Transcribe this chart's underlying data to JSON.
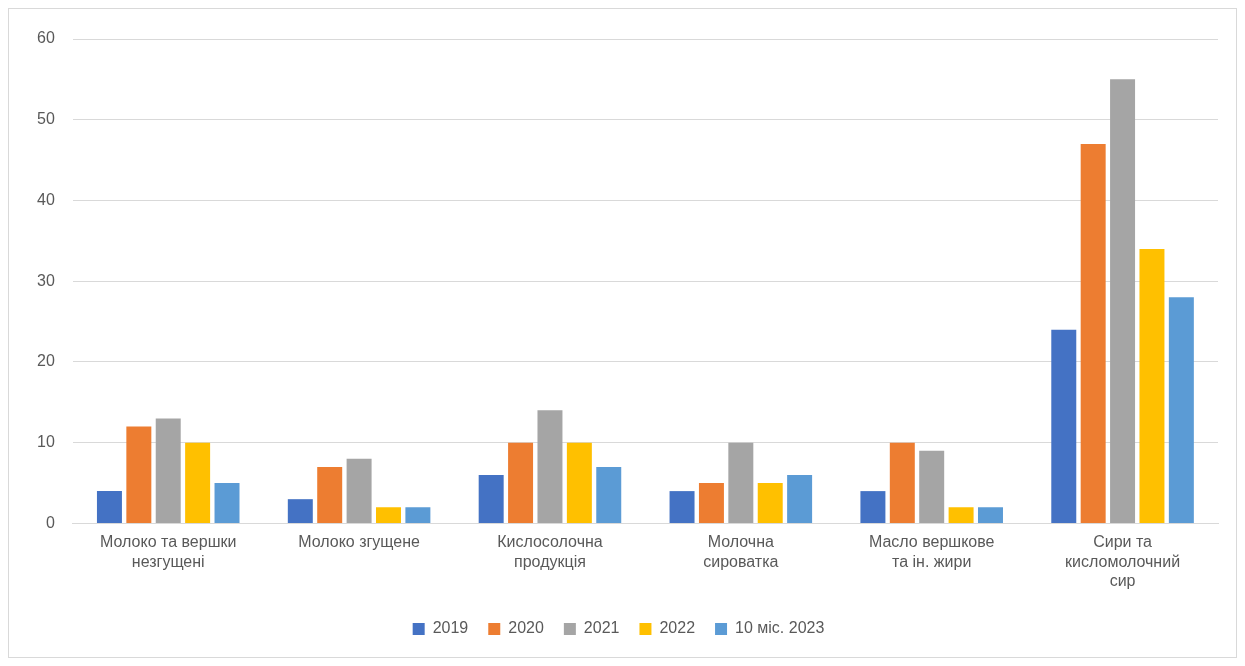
{
  "chart_data": {
    "type": "bar",
    "categories": [
      "Молоко та вершки незгущені",
      "Молоко згущене",
      "Кислосолочна продукція",
      "Молочна сироватка",
      "Масло вершкове та ін. жири",
      "Сири та кисломолочний сир"
    ],
    "series": [
      {
        "name": "2019",
        "color": "#4472c4",
        "values": [
          4,
          3,
          6,
          4,
          4,
          24
        ]
      },
      {
        "name": "2020",
        "color": "#ed7d31",
        "values": [
          12,
          7,
          10,
          5,
          10,
          47
        ]
      },
      {
        "name": "2021",
        "color": "#a5a5a5",
        "values": [
          13,
          8,
          14,
          10,
          9,
          55
        ]
      },
      {
        "name": "2022",
        "color": "#ffc000",
        "values": [
          10,
          2,
          10,
          5,
          2,
          34
        ]
      },
      {
        "name": "10 міс. 2023",
        "color": "#5b9bd5",
        "values": [
          5,
          2,
          7,
          6,
          2,
          28
        ]
      }
    ],
    "ylim": [
      0,
      60
    ],
    "yticks": [
      0,
      10,
      20,
      30,
      40,
      50,
      60
    ],
    "grid": "y",
    "legend": "bottom"
  }
}
